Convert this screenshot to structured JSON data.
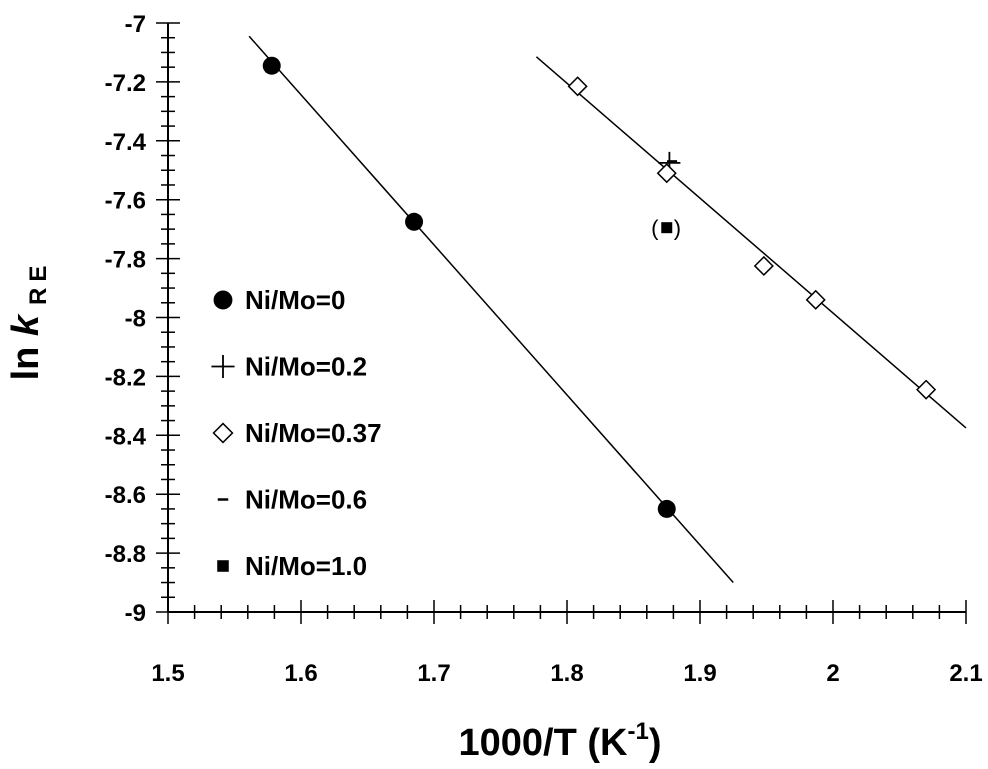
{
  "chart_data": {
    "type": "scatter",
    "xlabel": {
      "main": "1000/T  (K",
      "sup": "-1",
      "close": ")"
    },
    "ylabel": {
      "prefix": "ln ",
      "italic": "k",
      "sub": "RE"
    },
    "xlim": [
      1.5,
      2.1
    ],
    "ylim": [
      -9,
      -7
    ],
    "x_ticks": [
      1.5,
      1.6,
      1.7,
      1.8,
      1.9,
      2.0,
      2.1
    ],
    "x_tick_labels": [
      "1.5",
      "1.6",
      "1.7",
      "1.8",
      "1.9",
      "2",
      "2.1"
    ],
    "y_ticks": [
      -7,
      -7.2,
      -7.4,
      -7.6,
      -7.8,
      -8,
      -8.2,
      -8.4,
      -8.6,
      -8.8,
      -9
    ],
    "y_tick_labels": [
      "-7",
      "-7.2",
      "-7.4",
      "-7.6",
      "-7.8",
      "-8",
      "-8.2",
      "-8.4",
      "-8.6",
      "-8.8",
      "-9"
    ],
    "legend_position": "left",
    "series": [
      {
        "name": "Ni/Mo=0",
        "marker": "filled-circle",
        "points": [
          [
            1.578,
            -7.145
          ],
          [
            1.685,
            -7.675
          ],
          [
            1.875,
            -8.65
          ]
        ]
      },
      {
        "name": "Ni/Mo=0.2",
        "marker": "plus",
        "points": [
          [
            1.877,
            -7.475
          ]
        ]
      },
      {
        "name": "Ni/Mo=0.37",
        "marker": "open-diamond",
        "points": [
          [
            1.808,
            -7.215
          ],
          [
            1.875,
            -7.51
          ],
          [
            1.948,
            -7.825
          ],
          [
            1.987,
            -7.94
          ],
          [
            2.07,
            -8.245
          ]
        ]
      },
      {
        "name": "Ni/Mo=0.6",
        "marker": "dash",
        "points": [
          [
            1.879,
            -7.47
          ]
        ]
      },
      {
        "name": "Ni/Mo=1.0",
        "marker": "filled-square",
        "points": [
          [
            1.875,
            -7.695
          ]
        ]
      }
    ],
    "fit_lines": [
      {
        "from": [
          1.561,
          -7.045
        ],
        "to": [
          1.925,
          -8.9
        ]
      },
      {
        "from": [
          1.777,
          -7.115
        ],
        "to": [
          2.1,
          -8.375
        ]
      }
    ],
    "annotations": [
      {
        "text": "(",
        "x": 1.866,
        "y": -7.695
      },
      {
        "text": ")",
        "x": 1.883,
        "y": -7.695
      }
    ]
  }
}
